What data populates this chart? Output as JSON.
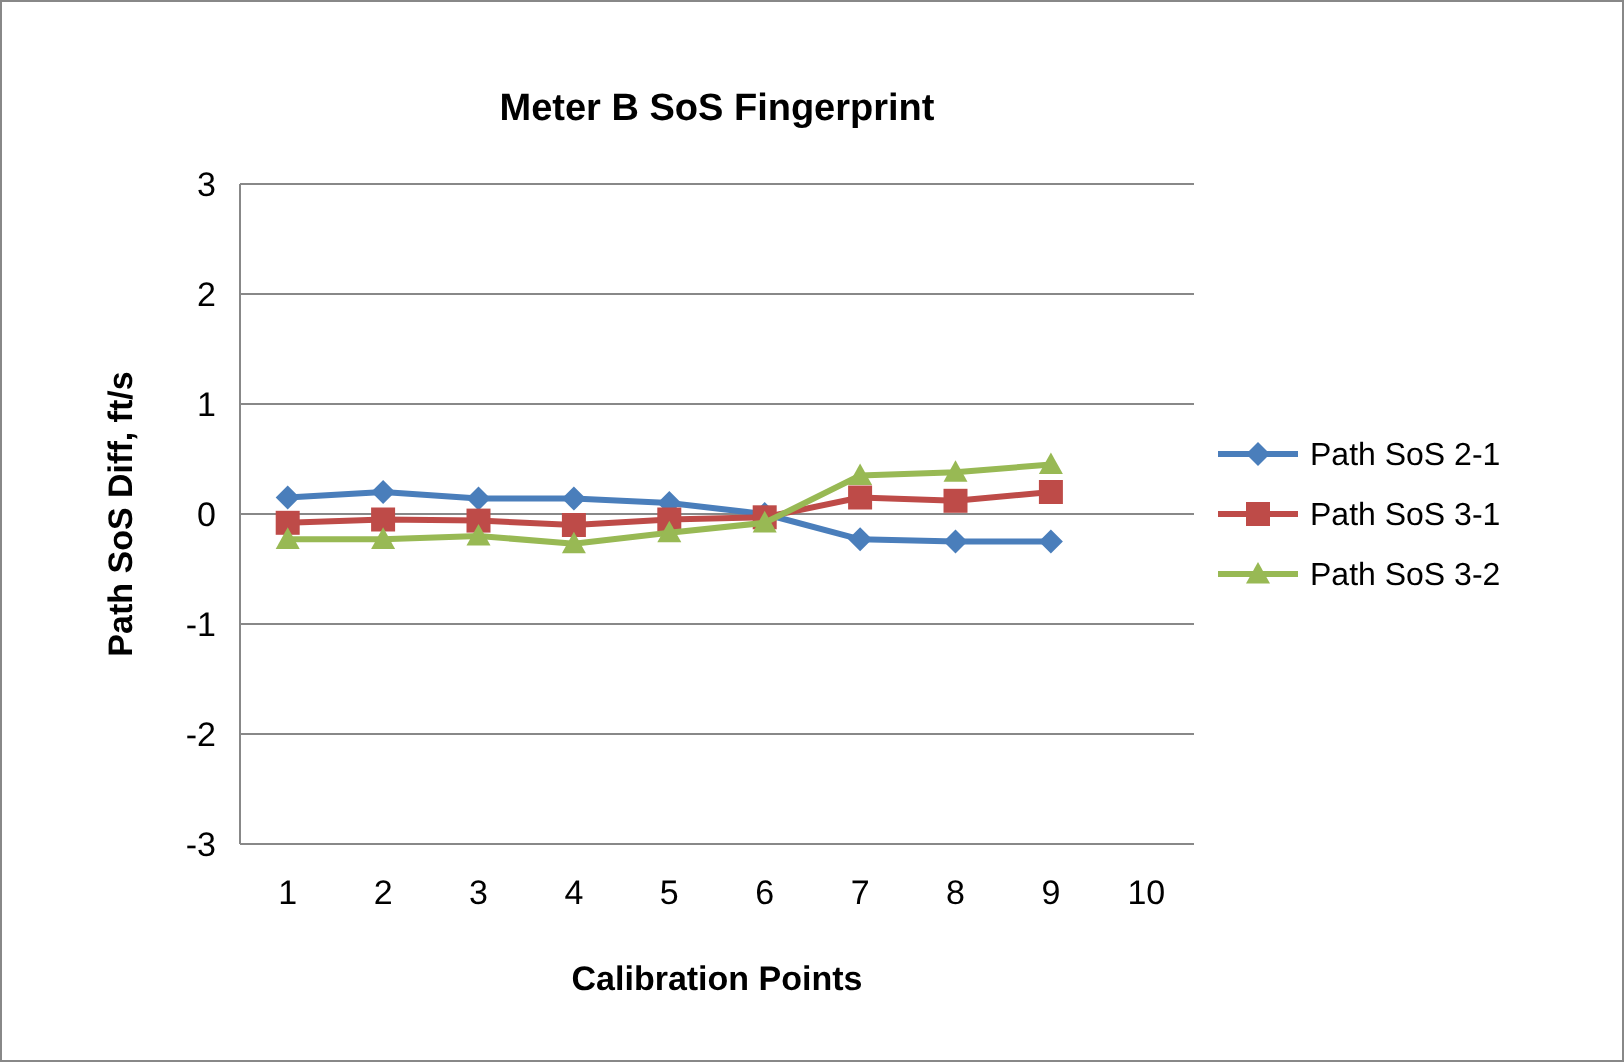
{
  "chart_data": {
    "type": "line",
    "title": "Meter B SoS Fingerprint",
    "xlabel": "Calibration Points",
    "ylabel": "Path SoS Diff, ft/s",
    "categories": [
      "1",
      "2",
      "3",
      "4",
      "5",
      "6",
      "7",
      "8",
      "9",
      "10"
    ],
    "series": [
      {
        "name": "Path SoS 2-1",
        "color": "#4a7ebb",
        "marker": "diamond",
        "values": [
          0.15,
          0.2,
          0.14,
          0.14,
          0.1,
          0,
          -0.23,
          -0.25,
          -0.25,
          null
        ]
      },
      {
        "name": "Path SoS 3-1",
        "color": "#be4b48",
        "marker": "square",
        "values": [
          -0.08,
          -0.05,
          -0.06,
          -0.1,
          -0.05,
          -0.03,
          0.15,
          0.12,
          0.2,
          null
        ]
      },
      {
        "name": "Path SoS 3-2",
        "color": "#98b954",
        "marker": "triangle",
        "values": [
          -0.23,
          -0.23,
          -0.2,
          -0.27,
          -0.17,
          -0.08,
          0.35,
          0.38,
          0.45,
          null
        ]
      }
    ],
    "ylim": [
      -3,
      3
    ],
    "yticks": [
      -3,
      -2,
      -1,
      0,
      1,
      2,
      3
    ],
    "grid": "y",
    "legend": "right"
  }
}
